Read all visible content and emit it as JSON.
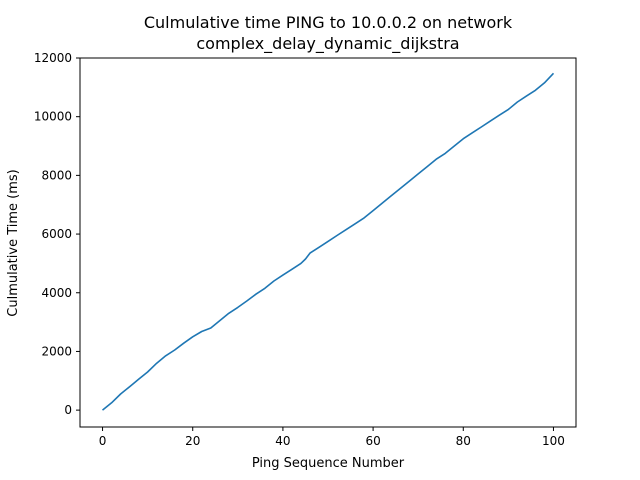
{
  "chart_data": {
    "type": "line",
    "title": "Culmulative time PING to 10.0.0.2 on network",
    "subtitle": "complex_delay_dynamic_dijkstra",
    "xlabel": "Ping Sequence Number",
    "ylabel": "Culmulative Time (ms)",
    "xlim": [
      -5,
      105
    ],
    "ylim": [
      -575,
      12000
    ],
    "xticks": [
      0,
      20,
      40,
      60,
      80,
      100
    ],
    "yticks": [
      0,
      2000,
      4000,
      6000,
      8000,
      10000,
      12000
    ],
    "grid": false,
    "series": [
      {
        "color": "#1f77b4",
        "x": [
          0,
          2,
          4,
          6,
          8,
          10,
          12,
          14,
          16,
          18,
          20,
          22,
          24,
          26,
          28,
          30,
          32,
          34,
          36,
          38,
          40,
          42,
          44,
          45,
          46,
          48,
          50,
          52,
          54,
          56,
          58,
          60,
          62,
          64,
          66,
          68,
          70,
          72,
          74,
          76,
          78,
          80,
          82,
          84,
          86,
          88,
          90,
          92,
          94,
          96,
          98,
          100
        ],
        "y": [
          0,
          250,
          550,
          800,
          1050,
          1300,
          1600,
          1850,
          2050,
          2280,
          2500,
          2680,
          2800,
          3050,
          3300,
          3500,
          3720,
          3950,
          4150,
          4400,
          4600,
          4800,
          5000,
          5150,
          5350,
          5550,
          5750,
          5950,
          6150,
          6350,
          6550,
          6800,
          7050,
          7300,
          7550,
          7800,
          8050,
          8300,
          8550,
          8750,
          9000,
          9250,
          9450,
          9650,
          9850,
          10050,
          10250,
          10500,
          10700,
          10900,
          11150,
          11480
        ]
      }
    ]
  }
}
